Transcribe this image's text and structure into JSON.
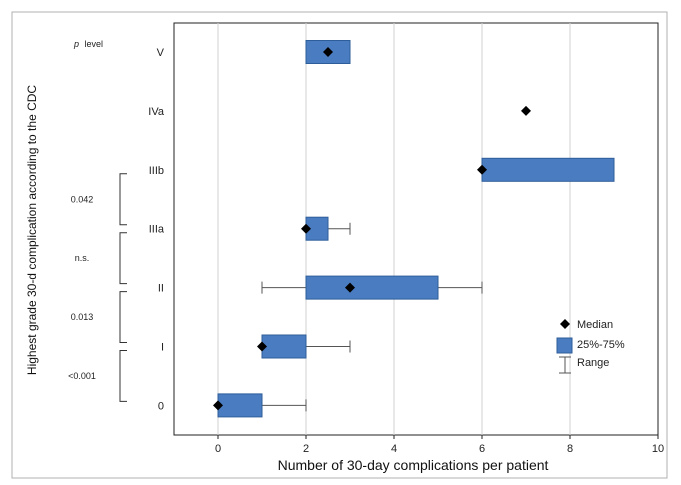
{
  "chart_data": {
    "type": "boxplot-horizontal",
    "xlabel": "Number of 30-day complications per patient",
    "ylabel": "Highest  grade 30-d complication according to the CDC",
    "xlim": [
      -1,
      10
    ],
    "xticks": [
      0,
      2,
      4,
      6,
      8,
      10
    ],
    "grid": "vertical",
    "categories": [
      "V",
      "IVa",
      "IIIb",
      "IIIa",
      "II",
      "I",
      "0"
    ],
    "series": [
      {
        "category": "V",
        "median": 2.5,
        "q1": 2,
        "q3": 3,
        "min": null,
        "max": null
      },
      {
        "category": "IVa",
        "median": 7,
        "q1": null,
        "q3": null,
        "min": null,
        "max": null
      },
      {
        "category": "IIIb",
        "median": 6,
        "q1": 6,
        "q3": 9,
        "min": null,
        "max": null
      },
      {
        "category": "IIIa",
        "median": 2,
        "q1": 2,
        "q3": 2.5,
        "min": 2,
        "max": 3
      },
      {
        "category": "II",
        "median": 3,
        "q1": 2,
        "q3": 5,
        "min": 1,
        "max": 6
      },
      {
        "category": "I",
        "median": 1,
        "q1": 1,
        "q3": 2,
        "min": 1,
        "max": 3
      },
      {
        "category": "0",
        "median": 0,
        "q1": 0,
        "q3": 1,
        "min": 0,
        "max": 2
      }
    ],
    "p_header": "level",
    "p_header_italic": "p",
    "p_values": [
      {
        "label": "0.042",
        "between": [
          "IIIb",
          "IIIa"
        ]
      },
      {
        "label": "n.s.",
        "between": [
          "IIIa",
          "II"
        ]
      },
      {
        "label": "0.013",
        "between": [
          "II",
          "I"
        ]
      },
      {
        "label": "<0.001",
        "between": [
          "I",
          "0"
        ]
      }
    ],
    "legend": {
      "position": "right",
      "items": [
        {
          "label": "Median",
          "symbol": "diamond"
        },
        {
          "label": "25%-75%",
          "symbol": "box"
        },
        {
          "label": "Range",
          "symbol": "whisker"
        }
      ]
    },
    "colors": {
      "box_fill": "#4a7cc1",
      "box_stroke": "#2e5e99",
      "marker": "#000000",
      "whisker": "#555555",
      "grid": "#d0d0d0",
      "frame": "#b0b0b0"
    }
  }
}
